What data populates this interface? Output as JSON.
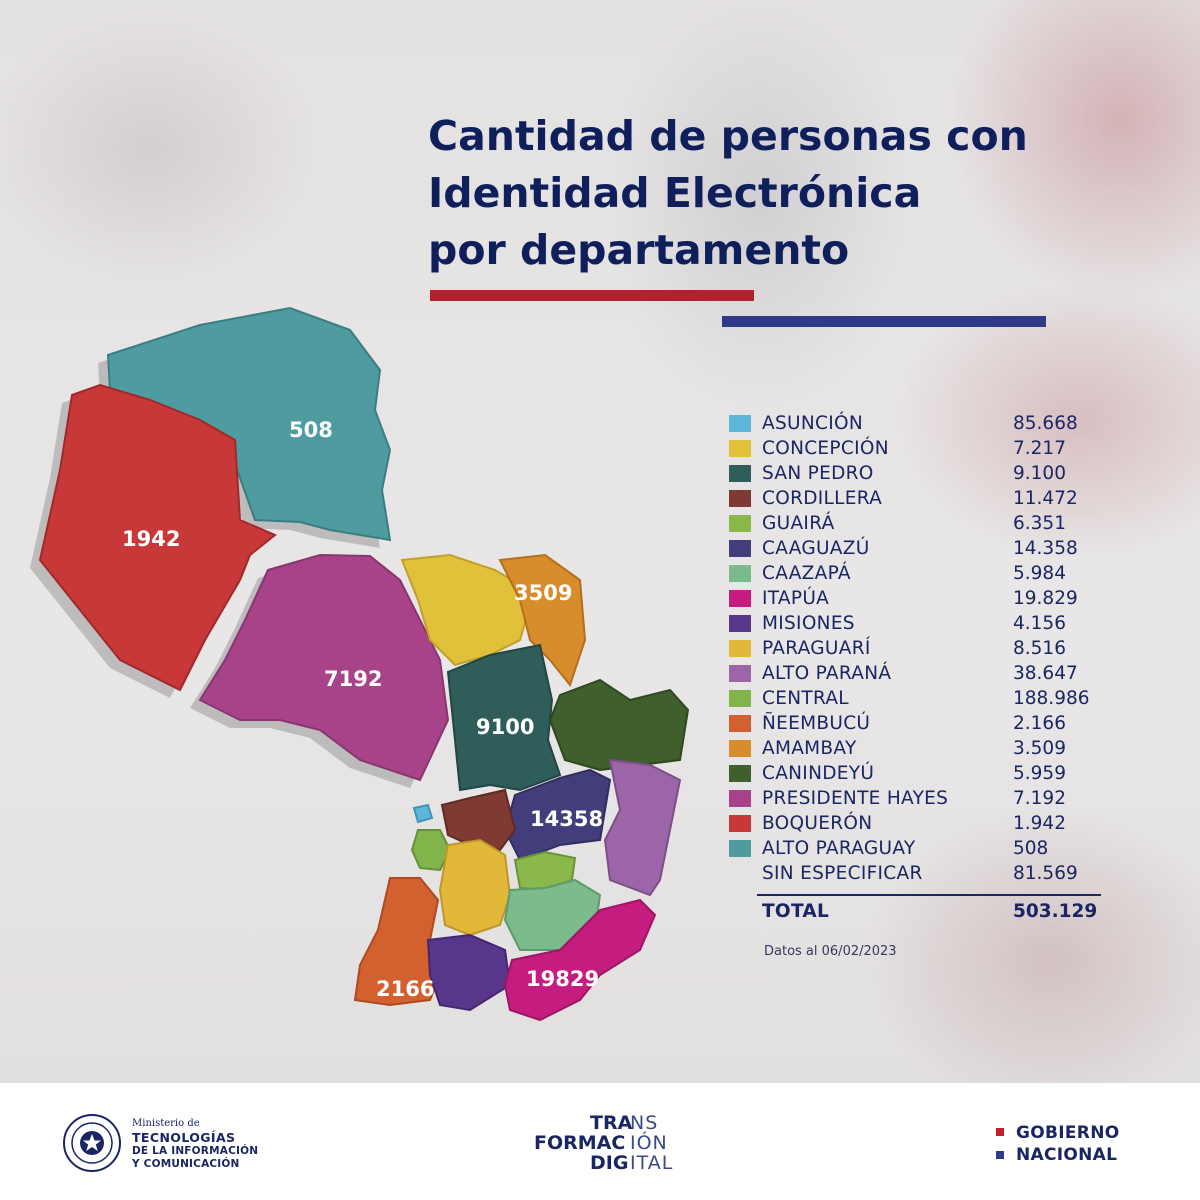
{
  "title": {
    "line1": "Cantidad de personas con",
    "line2": "Identidad Electrónica",
    "line3": "por departamento"
  },
  "colors": {
    "title": "#0f1f5c",
    "rule_red": "#b61f2b",
    "rule_blue": "#2f3a86"
  },
  "map": {
    "labels": {
      "alto_paraguay": "508",
      "boqueron": "1942",
      "presidente_hayes": "7192",
      "amambay": "3509",
      "san_pedro": "9100",
      "caaguazu": "14358",
      "neembucu": "2166",
      "itapua": "19829"
    }
  },
  "legend": {
    "items": [
      {
        "name": "ASUNCIÓN",
        "value": "85.668",
        "color": "#5bb6d9"
      },
      {
        "name": "CONCEPCIÓN",
        "value": "7.217",
        "color": "#e1c13a"
      },
      {
        "name": "SAN PEDRO",
        "value": "9.100",
        "color": "#2f5d5a"
      },
      {
        "name": "CORDILLERA",
        "value": "11.472",
        "color": "#7f3a33"
      },
      {
        "name": "GUAIRÁ",
        "value": "6.351",
        "color": "#8ab84a"
      },
      {
        "name": "CAAGUAZÚ",
        "value": "14.358",
        "color": "#423e7c"
      },
      {
        "name": "CAAZAPÁ",
        "value": "5.984",
        "color": "#7cbb8b"
      },
      {
        "name": "ITAPÚA",
        "value": "19.829",
        "color": "#c41d7f"
      },
      {
        "name": "MISIONES",
        "value": "4.156",
        "color": "#58368b"
      },
      {
        "name": "PARAGUARÍ",
        "value": "8.516",
        "color": "#e2b83b"
      },
      {
        "name": "ALTO PARANÁ",
        "value": "38.647",
        "color": "#9c65a8"
      },
      {
        "name": "CENTRAL",
        "value": "188.986",
        "color": "#82b44c"
      },
      {
        "name": "ÑEEMBUCÚ",
        "value": "2.166",
        "color": "#d2612f"
      },
      {
        "name": "AMAMBAY",
        "value": "3.509",
        "color": "#d98c2c"
      },
      {
        "name": "CANINDEYÚ",
        "value": "5.959",
        "color": "#3f5f2d"
      },
      {
        "name": "PRESIDENTE HAYES",
        "value": "7.192",
        "color": "#a84389"
      },
      {
        "name": "BOQUERÓN",
        "value": "1.942",
        "color": "#c83838"
      },
      {
        "name": "ALTO PARAGUAY",
        "value": "508",
        "color": "#4e9ba0"
      },
      {
        "name": "SIN ESPECIFICAR",
        "value": "81.569",
        "color": ""
      }
    ],
    "total_label": "TOTAL",
    "total_value": "503.129",
    "note": "Datos al 06/02/2023"
  },
  "footer": {
    "ministry": {
      "line1": "Ministerio de",
      "line2": "TECNOLOGÍAS",
      "line3": "DE LA INFORMACIÓN",
      "line4": "Y COMUNICACIÓN"
    },
    "td_logo": {
      "a1": "TRA",
      "a2": "NS",
      "b1": "FORMAC",
      "b2": "IÓN",
      "c1": "DIG",
      "c2": "ITAL"
    },
    "gobierno": {
      "line1": "GOBIERNO",
      "line2": "NACIONAL"
    }
  }
}
